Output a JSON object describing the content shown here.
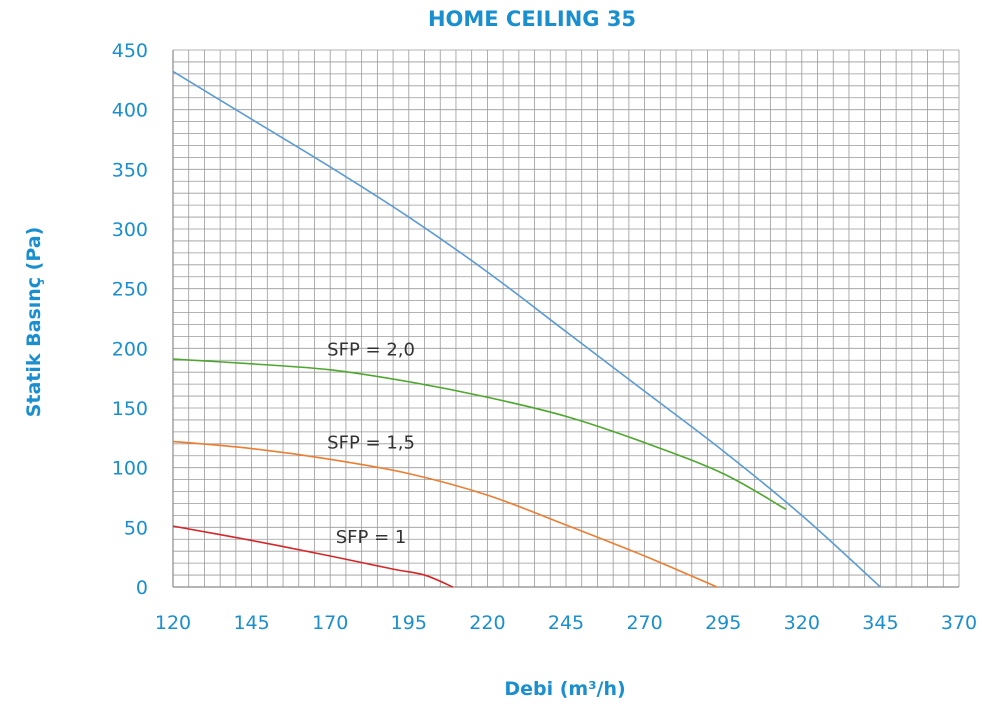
{
  "chart_data": {
    "type": "line",
    "title": "HOME CEILING 35",
    "xlabel": "Debi (m³/h)",
    "ylabel": "Statik Basınç (Pa)",
    "xlim": [
      120,
      370
    ],
    "ylim": [
      0,
      450
    ],
    "x_ticks": [
      "120",
      "145",
      "170",
      "195",
      "220",
      "245",
      "270",
      "295",
      "320",
      "345",
      "370"
    ],
    "y_ticks": [
      "0",
      "50",
      "100",
      "150",
      "200",
      "250",
      "300",
      "350",
      "400",
      "450"
    ],
    "grid": true,
    "colors": {
      "text": "#1a8fd0",
      "grid": "#9a9a9a",
      "annotation": "#333333"
    },
    "series": [
      {
        "color": "#5b9bd5",
        "points": [
          [
            120,
            432
          ],
          [
            145,
            392
          ],
          [
            170,
            352
          ],
          [
            195,
            310
          ],
          [
            220,
            264
          ],
          [
            245,
            214
          ],
          [
            270,
            164
          ],
          [
            295,
            114
          ],
          [
            320,
            60
          ],
          [
            345,
            0
          ]
        ]
      },
      {
        "color": "#4ea72e",
        "points": [
          [
            120,
            191
          ],
          [
            145,
            187
          ],
          [
            170,
            182
          ],
          [
            195,
            172
          ],
          [
            220,
            159
          ],
          [
            245,
            143
          ],
          [
            270,
            121
          ],
          [
            295,
            95
          ],
          [
            315,
            65
          ]
        ]
      },
      {
        "color": "#ed7d31",
        "points": [
          [
            120,
            122
          ],
          [
            145,
            116
          ],
          [
            170,
            107
          ],
          [
            195,
            95
          ],
          [
            220,
            77
          ],
          [
            245,
            52
          ],
          [
            270,
            26
          ],
          [
            293,
            0
          ]
        ]
      },
      {
        "color": "#d62728",
        "points": [
          [
            120,
            51
          ],
          [
            145,
            39
          ],
          [
            170,
            26
          ],
          [
            190,
            15
          ],
          [
            200,
            10
          ],
          [
            209,
            0
          ]
        ]
      }
    ],
    "annotations": [
      {
        "text": "SFP = 2,0",
        "x": 183,
        "y": 194
      },
      {
        "text": "SFP = 1,5",
        "x": 183,
        "y": 116
      },
      {
        "text": "SFP = 1",
        "x": 183,
        "y": 37
      }
    ]
  }
}
